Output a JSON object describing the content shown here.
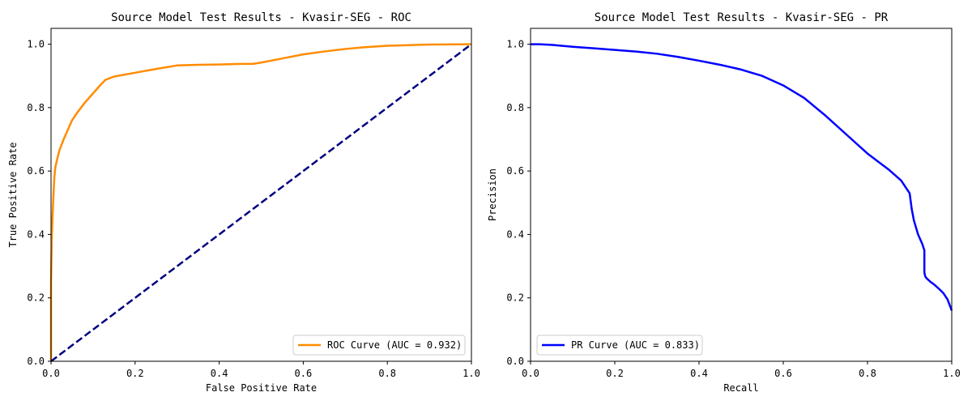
{
  "chart_data": [
    {
      "type": "line",
      "title": "Source Model Test Results - Kvasir-SEG - ROC",
      "xlabel": "False Positive Rate",
      "ylabel": "True Positive Rate",
      "xlim": [
        0.0,
        1.0
      ],
      "ylim": [
        0.0,
        1.05
      ],
      "xticks": [
        "0.0",
        "0.2",
        "0.4",
        "0.6",
        "0.8",
        "1.0"
      ],
      "yticks": [
        "0.0",
        "0.2",
        "0.4",
        "0.6",
        "0.8",
        "1.0"
      ],
      "grid": false,
      "legend_position": "lower-right",
      "series": [
        {
          "name": "ROC Curve (AUC = 0.932)",
          "color": "#ff8c00",
          "style": "solid",
          "x": [
            0.0,
            0.0,
            0.002,
            0.004,
            0.006,
            0.008,
            0.01,
            0.015,
            0.02,
            0.03,
            0.04,
            0.05,
            0.06,
            0.08,
            0.1,
            0.12,
            0.13,
            0.15,
            0.2,
            0.25,
            0.3,
            0.35,
            0.4,
            0.45,
            0.48,
            0.5,
            0.55,
            0.6,
            0.65,
            0.7,
            0.75,
            0.8,
            0.9,
            1.0
          ],
          "y": [
            0.0,
            0.25,
            0.4,
            0.47,
            0.53,
            0.58,
            0.61,
            0.64,
            0.665,
            0.7,
            0.73,
            0.76,
            0.78,
            0.815,
            0.845,
            0.875,
            0.888,
            0.898,
            0.91,
            0.922,
            0.933,
            0.935,
            0.936,
            0.938,
            0.938,
            0.942,
            0.955,
            0.968,
            0.977,
            0.985,
            0.991,
            0.995,
            0.999,
            1.0
          ]
        },
        {
          "name": "",
          "color": "#000080",
          "style": "dashed",
          "x": [
            0.0,
            1.0
          ],
          "y": [
            0.0,
            1.0
          ]
        }
      ]
    },
    {
      "type": "line",
      "title": "Source Model Test Results - Kvasir-SEG - PR",
      "xlabel": "Recall",
      "ylabel": "Precision",
      "xlim": [
        0.0,
        1.0
      ],
      "ylim": [
        0.0,
        1.05
      ],
      "xticks": [
        "0.0",
        "0.2",
        "0.4",
        "0.6",
        "0.8",
        "1.0"
      ],
      "yticks": [
        "0.0",
        "0.2",
        "0.4",
        "0.6",
        "0.8",
        "1.0"
      ],
      "grid": false,
      "legend_position": "lower-left",
      "series": [
        {
          "name": "PR Curve (AUC = 0.833)",
          "color": "#0000ff",
          "style": "solid",
          "x": [
            0.0,
            0.02,
            0.05,
            0.1,
            0.15,
            0.2,
            0.25,
            0.3,
            0.35,
            0.4,
            0.45,
            0.5,
            0.55,
            0.6,
            0.65,
            0.7,
            0.75,
            0.8,
            0.85,
            0.88,
            0.9,
            0.905,
            0.91,
            0.92,
            0.93,
            0.935,
            0.935,
            0.937,
            0.94,
            0.95,
            0.96,
            0.97,
            0.98,
            0.99,
            1.0
          ],
          "y": [
            1.0,
            1.0,
            0.998,
            0.992,
            0.987,
            0.982,
            0.977,
            0.97,
            0.96,
            0.948,
            0.935,
            0.92,
            0.9,
            0.87,
            0.83,
            0.775,
            0.715,
            0.655,
            0.605,
            0.57,
            0.53,
            0.48,
            0.445,
            0.4,
            0.37,
            0.35,
            0.28,
            0.268,
            0.262,
            0.25,
            0.24,
            0.228,
            0.215,
            0.195,
            0.16
          ]
        }
      ]
    }
  ]
}
